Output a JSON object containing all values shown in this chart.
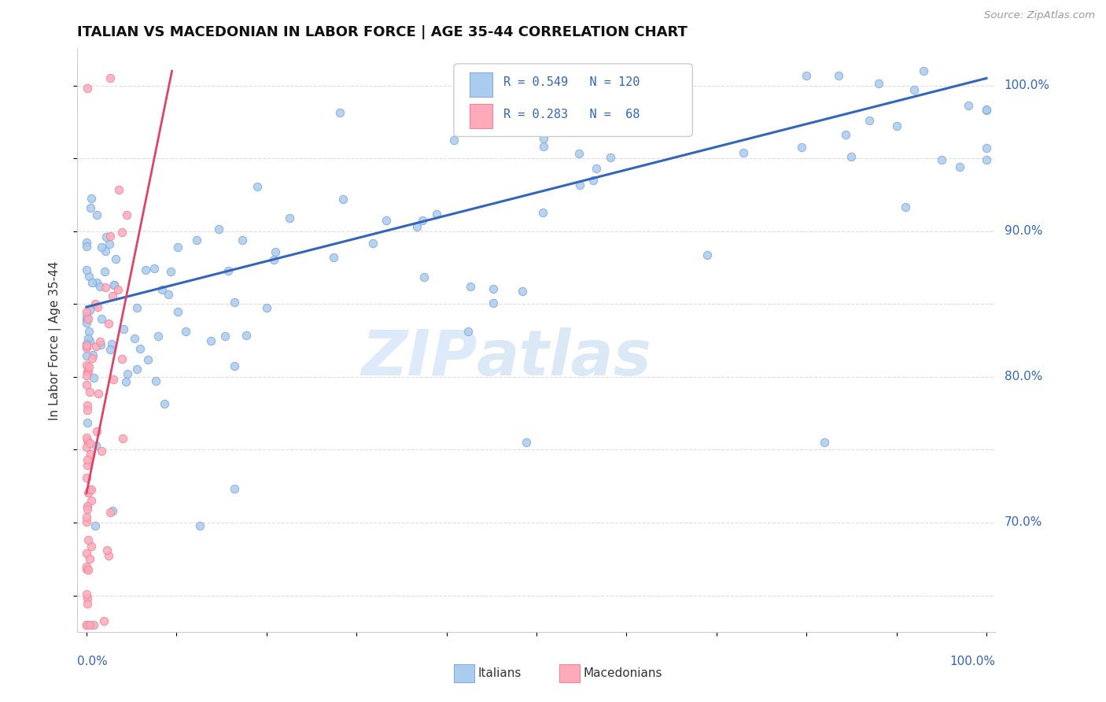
{
  "title": "ITALIAN VS MACEDONIAN IN LABOR FORCE | AGE 35-44 CORRELATION CHART",
  "source_text": "Source: ZipAtlas.com",
  "ylabel": "In Labor Force | Age 35-44",
  "italian_R": 0.549,
  "italian_N": 120,
  "macedonian_R": 0.283,
  "macedonian_N": 68,
  "italian_color": "#aaccee",
  "italian_edge_color": "#88aadd",
  "macedonian_color": "#ffaabb",
  "macedonian_edge_color": "#ee8899",
  "italian_line_color": "#3366bb",
  "macedonian_line_color": "#dd4466",
  "legend_label_italian": "Italians",
  "legend_label_macedonian": "Macedonians",
  "ylim_low": 0.625,
  "ylim_high": 1.025,
  "xlim_low": -0.01,
  "xlim_high": 1.01,
  "grid_color": "#dddddd",
  "grid_style": "--",
  "title_color": "#111111",
  "source_color": "#999999",
  "axis_label_color": "#3366bb",
  "ylabel_color": "#333333",
  "ita_trendline_x0": 0.0,
  "ita_trendline_y0": 0.848,
  "ita_trendline_x1": 1.0,
  "ita_trendline_y1": 1.005,
  "mac_trendline_x0": 0.0,
  "mac_trendline_y0": 0.72,
  "mac_trendline_x1": 0.095,
  "mac_trendline_y1": 1.01
}
